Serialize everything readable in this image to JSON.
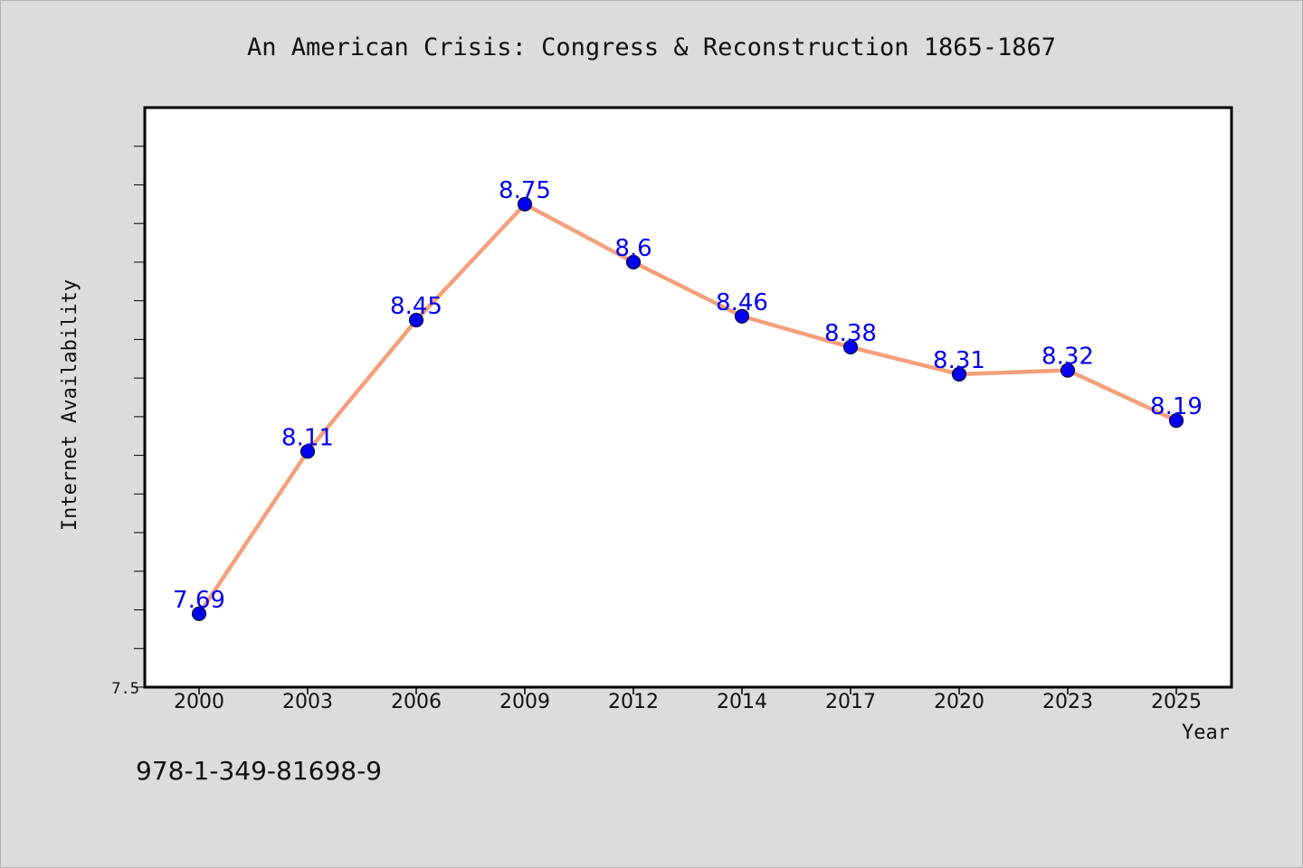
{
  "chart_data": {
    "type": "line",
    "title": "An American Crisis: Congress & Reconstruction 1865-1867",
    "xlabel": "Year",
    "ylabel": "Internet Availability",
    "categories": [
      "2000",
      "2003",
      "2006",
      "2009",
      "2012",
      "2014",
      "2017",
      "2020",
      "2023",
      "2025"
    ],
    "series": [
      {
        "values": [
          7.69,
          8.11,
          8.45,
          8.75,
          8.6,
          8.46,
          8.38,
          8.31,
          8.32,
          8.19
        ],
        "labels": [
          "7.69",
          "8.11",
          "8.45",
          "8.75",
          "8.6",
          "8.46",
          "8.38",
          "8.31",
          "8.32",
          "8.19"
        ]
      }
    ],
    "ylim": [
      7.5,
      9.0
    ],
    "yticks_labeled": [
      "7.5"
    ],
    "grid": false,
    "legend": "none",
    "colors": {
      "line": "#f4a07c",
      "marker_fill": "#0000ee",
      "marker_stroke": "#0a0a3a",
      "data_label": "#0000ee"
    }
  },
  "footer": {
    "code": "978-1-349-81698-9"
  }
}
